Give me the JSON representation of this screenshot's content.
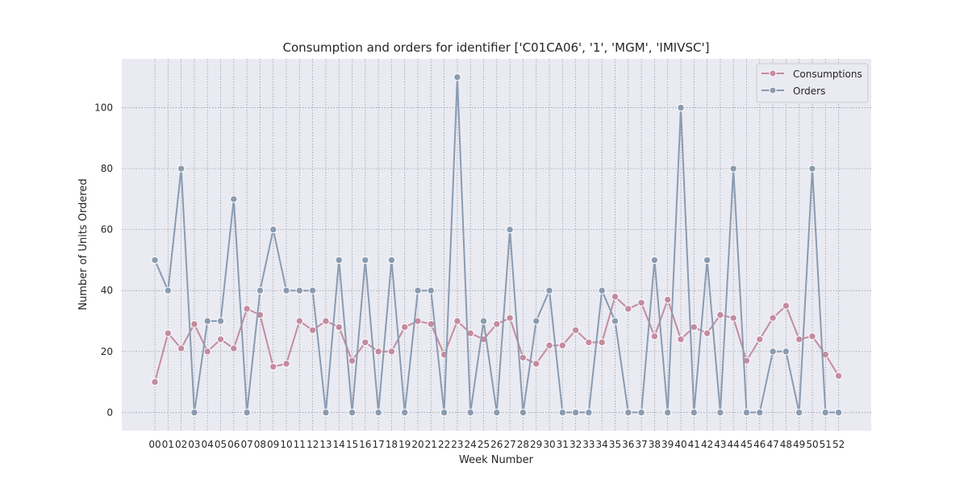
{
  "chart_data": {
    "type": "line",
    "title": "Consumption and orders for identifier ['C01CA06', '1', 'MGM', 'IMIVSC']",
    "xlabel": "Week Number",
    "ylabel": "Number of Units Ordered",
    "categories": [
      "00",
      "01",
      "02",
      "03",
      "04",
      "05",
      "06",
      "07",
      "08",
      "09",
      "10",
      "11",
      "12",
      "13",
      "14",
      "15",
      "16",
      "17",
      "18",
      "19",
      "20",
      "21",
      "22",
      "23",
      "24",
      "25",
      "26",
      "27",
      "28",
      "29",
      "30",
      "31",
      "32",
      "33",
      "34",
      "35",
      "36",
      "37",
      "38",
      "39",
      "40",
      "41",
      "42",
      "43",
      "44",
      "45",
      "46",
      "47",
      "48",
      "49",
      "50",
      "51",
      "52"
    ],
    "ylim": [
      -6,
      116
    ],
    "yticks": [
      0,
      20,
      40,
      60,
      80,
      100
    ],
    "grid": true,
    "legend_position": "top-right",
    "background": "#eaeaf2",
    "series": [
      {
        "name": "Consumptions",
        "color": "#c48b9f",
        "values": [
          10,
          26,
          21,
          29,
          20,
          24,
          21,
          34,
          32,
          15,
          16,
          30,
          27,
          30,
          28,
          17,
          23,
          20,
          20,
          28,
          30,
          29,
          19,
          30,
          26,
          24,
          29,
          31,
          18,
          16,
          22,
          22,
          27,
          23,
          23,
          38,
          34,
          36,
          25,
          37,
          24,
          28,
          26,
          32,
          31,
          17,
          24,
          31,
          35,
          24,
          25,
          19,
          12
        ]
      },
      {
        "name": "Orders",
        "color": "#8a9bb0",
        "values": [
          50,
          40,
          80,
          0,
          30,
          30,
          70,
          0,
          40,
          60,
          40,
          40,
          40,
          0,
          50,
          0,
          50,
          0,
          50,
          0,
          40,
          40,
          0,
          110,
          0,
          30,
          0,
          60,
          0,
          30,
          40,
          0,
          0,
          0,
          40,
          30,
          0,
          0,
          50,
          0,
          100,
          0,
          50,
          0,
          80,
          0,
          0,
          20,
          20,
          0,
          80,
          0,
          0
        ]
      }
    ]
  }
}
